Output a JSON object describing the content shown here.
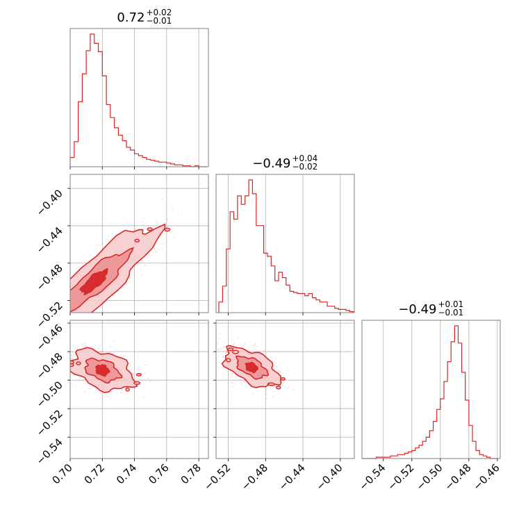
{
  "colors": {
    "series": "#d62728",
    "contour_fill_outer": "#f7c9ca",
    "contour_fill_inner": "#eb8f91",
    "frame": "#7f7f7f",
    "grid": "#b0b0b0"
  },
  "chart_data": {
    "type": "corner",
    "grid": true,
    "parameters": [
      {
        "range": [
          0.7,
          0.786
        ],
        "ticks": [
          0.7,
          0.72,
          0.74,
          0.76,
          0.78
        ],
        "tick_labels": [
          "0.70",
          "0.72",
          "0.74",
          "0.76",
          "0.78"
        ],
        "title": {
          "main": "0.72",
          "sup": "+0.02",
          "sub": "−0.01"
        }
      },
      {
        "range": [
          -0.533,
          -0.385
        ],
        "ticks": [
          -0.52,
          -0.48,
          -0.44,
          -0.4
        ],
        "tick_labels": [
          "−0.52",
          "−0.48",
          "−0.44",
          "−0.40"
        ],
        "title": {
          "main": "−0.49",
          "sup": "+0.04",
          "sub": "−0.02"
        }
      },
      {
        "range": [
          -0.555,
          -0.458
        ],
        "ticks": [
          -0.54,
          -0.52,
          -0.5,
          -0.48,
          -0.46
        ],
        "tick_labels": [
          "−0.54",
          "−0.52",
          "−0.50",
          "−0.48",
          "−0.46"
        ],
        "title": {
          "main": "−0.49",
          "sup": "+0.01",
          "sub": "−0.01"
        }
      }
    ],
    "histograms": [
      {
        "bin_edges": [
          0.7,
          0.7025,
          0.705,
          0.7075,
          0.71,
          0.7125,
          0.715,
          0.7175,
          0.72,
          0.7225,
          0.725,
          0.7275,
          0.73,
          0.7325,
          0.735,
          0.7375,
          0.74,
          0.7425,
          0.745,
          0.7475,
          0.75,
          0.7525,
          0.755,
          0.7575,
          0.76,
          0.7625,
          0.765,
          0.7675,
          0.77,
          0.7725,
          0.775,
          0.7775,
          0.78,
          0.7825,
          0.785
        ],
        "counts": [
          10,
          27,
          70,
          100,
          125,
          143,
          133,
          124,
          98,
          67,
          53,
          42,
          34,
          28,
          21,
          18,
          14,
          12,
          10,
          8,
          7,
          6,
          5,
          5,
          4,
          3,
          2,
          2,
          1,
          1,
          0,
          1,
          0,
          0
        ]
      },
      {
        "bin_edges": [
          -0.53,
          -0.526,
          -0.522,
          -0.518,
          -0.514,
          -0.51,
          -0.506,
          -0.502,
          -0.498,
          -0.494,
          -0.49,
          -0.486,
          -0.482,
          -0.478,
          -0.474,
          -0.47,
          -0.466,
          -0.462,
          -0.458,
          -0.454,
          -0.45,
          -0.446,
          -0.442,
          -0.438,
          -0.434,
          -0.43,
          -0.426,
          -0.422,
          -0.418,
          -0.414,
          -0.41,
          -0.406,
          -0.402,
          -0.398,
          -0.394,
          -0.39,
          -0.386
        ],
        "counts": [
          10,
          25,
          60,
          95,
          88,
          110,
          102,
          110,
          125,
          112,
          82,
          82,
          56,
          53,
          44,
          30,
          38,
          33,
          26,
          20,
          19,
          18,
          18,
          16,
          18,
          14,
          12,
          10,
          10,
          6,
          6,
          4,
          3,
          3,
          2,
          1
        ]
      },
      {
        "bin_edges": [
          -0.555,
          -0.5525,
          -0.55,
          -0.5475,
          -0.545,
          -0.5425,
          -0.54,
          -0.5375,
          -0.535,
          -0.5325,
          -0.53,
          -0.5275,
          -0.525,
          -0.5225,
          -0.52,
          -0.5175,
          -0.515,
          -0.5125,
          -0.51,
          -0.5075,
          -0.505,
          -0.5025,
          -0.5,
          -0.4975,
          -0.495,
          -0.4925,
          -0.49,
          -0.4875,
          -0.485,
          -0.4825,
          -0.48,
          -0.4775,
          -0.475,
          -0.4725,
          -0.47,
          -0.4675,
          -0.465,
          -0.4625,
          -0.46
        ],
        "counts": [
          0,
          0,
          0,
          0,
          1,
          1,
          1,
          1,
          2,
          2,
          3,
          3,
          4,
          5,
          6,
          8,
          10,
          13,
          16,
          21,
          28,
          37,
          45,
          58,
          73,
          88,
          100,
          87,
          65,
          44,
          25,
          13,
          6,
          3,
          2,
          1,
          0,
          0
        ]
      }
    ],
    "joint": [
      {
        "x_param": 0,
        "y_param": 1,
        "center": [
          0.715,
          -0.5
        ],
        "axis_direction": [
          0.02,
          0.03
        ],
        "length": 3.8,
        "width": 0.25,
        "levels": [
          0.2,
          0.55,
          1.0
        ]
      },
      {
        "x_param": 0,
        "y_param": 2,
        "center": [
          0.72,
          -0.493
        ],
        "axis_direction": [
          0.02,
          -0.0085
        ],
        "length": 1.9,
        "width": 0.55,
        "levels": [
          0.2,
          0.55,
          1.0
        ]
      },
      {
        "x_param": 1,
        "y_param": 2,
        "center": [
          -0.495,
          -0.491
        ],
        "axis_direction": [
          0.03,
          -0.0105
        ],
        "length": 1.9,
        "width": 0.5,
        "levels": [
          0.2,
          0.55,
          1.0
        ]
      }
    ]
  }
}
